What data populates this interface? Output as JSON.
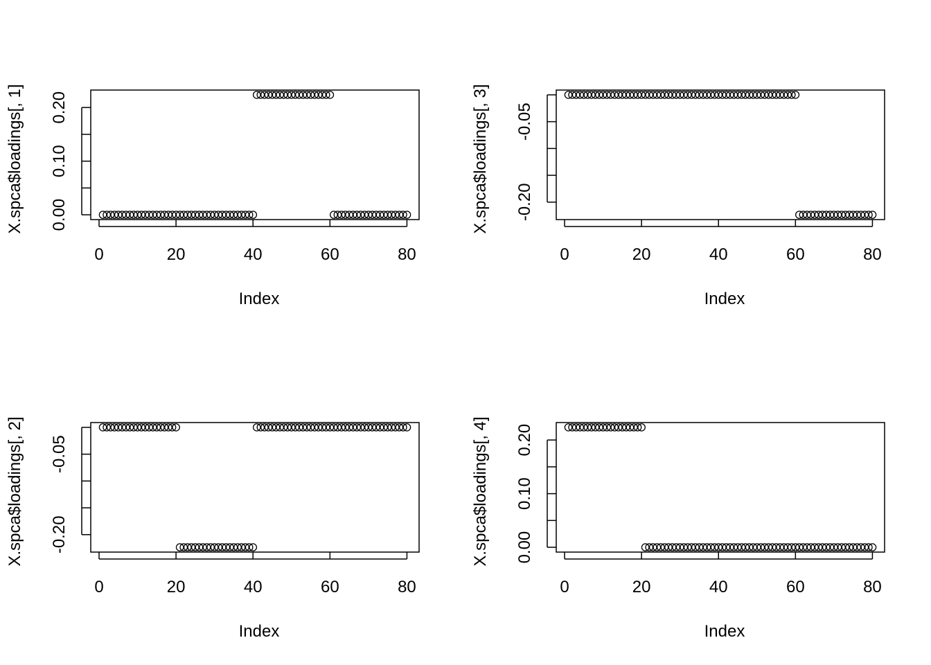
{
  "chart_data": [
    {
      "type": "scatter",
      "xlabel": "Index",
      "ylabel": "X.spca$loadings[, 1]",
      "xlim": [
        0,
        80
      ],
      "ylim": [
        0,
        0.2236
      ],
      "x_ticks": [
        0,
        20,
        40,
        60,
        80
      ],
      "x_tick_labels": [
        "0",
        "20",
        "40",
        "60",
        "80"
      ],
      "y_ticks": [
        0,
        0.05,
        0.1,
        0.15,
        0.2
      ],
      "y_tick_labels": [
        "0.00",
        "",
        "0.10",
        "",
        "0.20"
      ],
      "segments": [
        {
          "from": 1,
          "to": 40,
          "value": 0
        },
        {
          "from": 41,
          "to": 60,
          "value": 0.2236
        },
        {
          "from": 61,
          "to": 80,
          "value": 0
        }
      ]
    },
    {
      "type": "scatter",
      "xlabel": "Index",
      "ylabel": "X.spca$loadings[, 3]",
      "xlim": [
        0,
        80
      ],
      "ylim": [
        -0.2236,
        0
      ],
      "x_ticks": [
        0,
        20,
        40,
        60,
        80
      ],
      "x_tick_labels": [
        "0",
        "20",
        "40",
        "60",
        "80"
      ],
      "y_ticks": [
        -0.2,
        -0.15,
        -0.1,
        -0.05,
        0
      ],
      "y_tick_labels": [
        "-0.20",
        "",
        "",
        "-0.05",
        ""
      ],
      "segments": [
        {
          "from": 1,
          "to": 60,
          "value": 0
        },
        {
          "from": 61,
          "to": 80,
          "value": -0.2236
        }
      ]
    },
    {
      "type": "scatter",
      "xlabel": "Index",
      "ylabel": "X.spca$loadings[, 2]",
      "xlim": [
        0,
        80
      ],
      "ylim": [
        -0.2236,
        0
      ],
      "x_ticks": [
        0,
        20,
        40,
        60,
        80
      ],
      "x_tick_labels": [
        "0",
        "20",
        "40",
        "60",
        "80"
      ],
      "y_ticks": [
        -0.2,
        -0.15,
        -0.1,
        -0.05,
        0
      ],
      "y_tick_labels": [
        "-0.20",
        "",
        "",
        "-0.05",
        ""
      ],
      "segments": [
        {
          "from": 1,
          "to": 20,
          "value": 0
        },
        {
          "from": 21,
          "to": 40,
          "value": -0.2236
        },
        {
          "from": 41,
          "to": 80,
          "value": 0
        }
      ]
    },
    {
      "type": "scatter",
      "xlabel": "Index",
      "ylabel": "X.spca$loadings[, 4]",
      "xlim": [
        0,
        80
      ],
      "ylim": [
        0,
        0.2236
      ],
      "x_ticks": [
        0,
        20,
        40,
        60,
        80
      ],
      "x_tick_labels": [
        "0",
        "20",
        "40",
        "60",
        "80"
      ],
      "y_ticks": [
        0,
        0.05,
        0.1,
        0.15,
        0.2
      ],
      "y_tick_labels": [
        "0.00",
        "",
        "0.10",
        "",
        "0.20"
      ],
      "segments": [
        {
          "from": 1,
          "to": 20,
          "value": 0.2236
        },
        {
          "from": 21,
          "to": 80,
          "value": 0
        }
      ]
    }
  ]
}
